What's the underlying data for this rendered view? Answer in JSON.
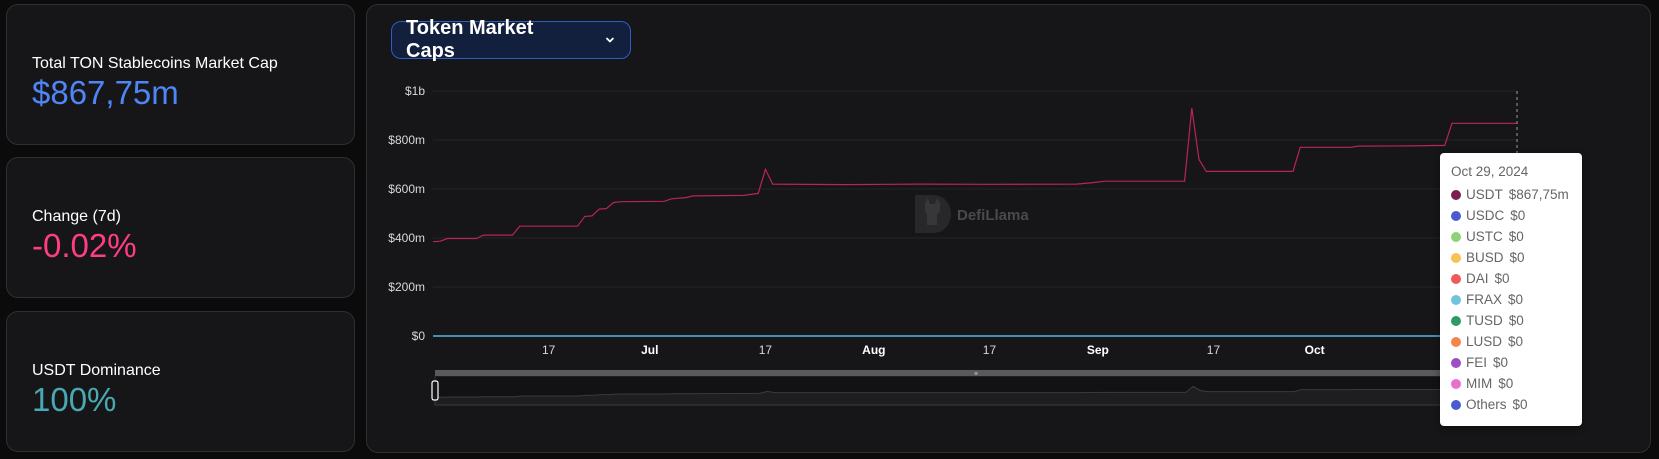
{
  "stats": {
    "market_cap": {
      "label": "Total TON Stablecoins Market Cap",
      "value": "$867,75m",
      "color": "#4f86f7"
    },
    "change": {
      "label": "Change (7d)",
      "value": "-0.02%",
      "color": "#ff3d84"
    },
    "dominance": {
      "label": "USDT Dominance",
      "value": "100%",
      "color": "#48a9b5"
    }
  },
  "chart_selector": {
    "label": "Token Market Caps",
    "icon": "chevron-down-icon"
  },
  "watermark": "DefiLlama",
  "tooltip": {
    "date": "Oct 29, 2024",
    "items": [
      {
        "name": "USDT",
        "value": "$867,75m",
        "color": "#7a1f4f"
      },
      {
        "name": "USDC",
        "value": "$0",
        "color": "#4a5bcf"
      },
      {
        "name": "USTC",
        "value": "$0",
        "color": "#8fd17a"
      },
      {
        "name": "BUSD",
        "value": "$0",
        "color": "#f5c451"
      },
      {
        "name": "DAI",
        "value": "$0",
        "color": "#ef5a5a"
      },
      {
        "name": "FRAX",
        "value": "$0",
        "color": "#6ec3df"
      },
      {
        "name": "TUSD",
        "value": "$0",
        "color": "#2e9c62"
      },
      {
        "name": "LUSD",
        "value": "$0",
        "color": "#f7844a"
      },
      {
        "name": "FEI",
        "value": "$0",
        "color": "#9b4fc0"
      },
      {
        "name": "MIM",
        "value": "$0",
        "color": "#e86fd3"
      },
      {
        "name": "Others",
        "value": "$0",
        "color": "#4a5bcf"
      }
    ]
  },
  "chart_data": {
    "type": "line",
    "title": "",
    "xlabel": "",
    "ylabel": "",
    "ylim": [
      0,
      1000
    ],
    "y_unit": "millions USD",
    "y_ticks": [
      {
        "value": 0,
        "label": "$0"
      },
      {
        "value": 200,
        "label": "$200m"
      },
      {
        "value": 400,
        "label": "$400m"
      },
      {
        "value": 600,
        "label": "$600m"
      },
      {
        "value": 800,
        "label": "$800m"
      },
      {
        "value": 1000,
        "label": "$1b"
      }
    ],
    "x_ticks": [
      {
        "date": "2024-06-17",
        "label": "17",
        "bold": false
      },
      {
        "date": "2024-07-01",
        "label": "Jul",
        "bold": true
      },
      {
        "date": "2024-07-17",
        "label": "17",
        "bold": false
      },
      {
        "date": "2024-08-01",
        "label": "Aug",
        "bold": true
      },
      {
        "date": "2024-08-17",
        "label": "17",
        "bold": false
      },
      {
        "date": "2024-09-01",
        "label": "Sep",
        "bold": true
      },
      {
        "date": "2024-09-17",
        "label": "17",
        "bold": false
      },
      {
        "date": "2024-10-01",
        "label": "Oct",
        "bold": true
      }
    ],
    "x_range": [
      "2024-06-01",
      "2024-10-29"
    ],
    "grid": true,
    "series": [
      {
        "name": "USDT",
        "color": "#b8245c",
        "points": [
          [
            "2024-06-01",
            385
          ],
          [
            "2024-06-02",
            387
          ],
          [
            "2024-06-03",
            398
          ],
          [
            "2024-06-07",
            398
          ],
          [
            "2024-06-08",
            412
          ],
          [
            "2024-06-12",
            412
          ],
          [
            "2024-06-13",
            448
          ],
          [
            "2024-06-21",
            448
          ],
          [
            "2024-06-22",
            488
          ],
          [
            "2024-06-23",
            490
          ],
          [
            "2024-06-24",
            518
          ],
          [
            "2024-06-25",
            520
          ],
          [
            "2024-06-26",
            545
          ],
          [
            "2024-06-27",
            548
          ],
          [
            "2024-07-03",
            550
          ],
          [
            "2024-07-04",
            560
          ],
          [
            "2024-07-06",
            565
          ],
          [
            "2024-07-07",
            572
          ],
          [
            "2024-07-14",
            574
          ],
          [
            "2024-07-15",
            578
          ],
          [
            "2024-07-16",
            582
          ],
          [
            "2024-07-17",
            680
          ],
          [
            "2024-07-18",
            620
          ],
          [
            "2024-07-28",
            618
          ],
          [
            "2024-08-07",
            620
          ],
          [
            "2024-08-17",
            619
          ],
          [
            "2024-08-29",
            620
          ],
          [
            "2024-08-31",
            625
          ],
          [
            "2024-09-02",
            632
          ],
          [
            "2024-09-13",
            632
          ],
          [
            "2024-09-14",
            930
          ],
          [
            "2024-09-15",
            720
          ],
          [
            "2024-09-16",
            672
          ],
          [
            "2024-09-28",
            672
          ],
          [
            "2024-09-29",
            770
          ],
          [
            "2024-10-06",
            770
          ],
          [
            "2024-10-07",
            775
          ],
          [
            "2024-10-14",
            776
          ],
          [
            "2024-10-19",
            778
          ],
          [
            "2024-10-20",
            868
          ],
          [
            "2024-10-29",
            868
          ]
        ]
      },
      {
        "name": "USDC",
        "color": "#5ab4e6",
        "points": [
          [
            "2024-06-01",
            0
          ],
          [
            "2024-10-29",
            0
          ]
        ]
      }
    ]
  }
}
